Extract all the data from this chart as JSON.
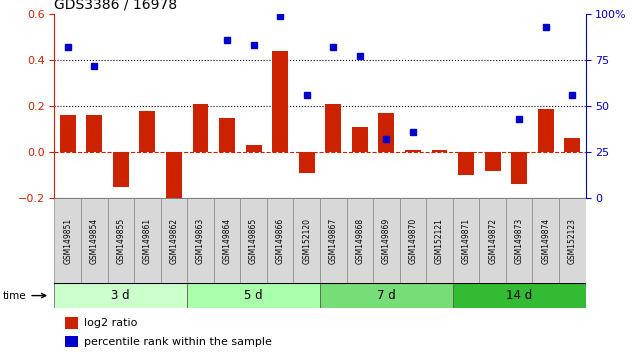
{
  "title": "GDS3386 / 16978",
  "samples": [
    "GSM149851",
    "GSM149854",
    "GSM149855",
    "GSM149861",
    "GSM149862",
    "GSM149863",
    "GSM149864",
    "GSM149865",
    "GSM149866",
    "GSM152120",
    "GSM149867",
    "GSM149868",
    "GSM149869",
    "GSM149870",
    "GSM152121",
    "GSM149871",
    "GSM149872",
    "GSM149873",
    "GSM149874",
    "GSM152123"
  ],
  "log2_ratio": [
    0.16,
    0.16,
    -0.15,
    0.18,
    -0.22,
    0.21,
    0.15,
    0.03,
    0.44,
    -0.09,
    0.21,
    0.11,
    0.17,
    0.01,
    0.01,
    -0.1,
    -0.08,
    -0.14,
    0.19,
    0.06
  ],
  "percentile_pct": [
    82,
    72,
    null,
    null,
    null,
    null,
    86,
    83,
    99,
    56,
    82,
    77,
    32,
    36,
    null,
    null,
    null,
    43,
    93,
    56
  ],
  "groups": [
    {
      "label": "3 d",
      "start": 0,
      "end": 5,
      "color": "#ccffcc"
    },
    {
      "label": "5 d",
      "start": 5,
      "end": 10,
      "color": "#aaffaa"
    },
    {
      "label": "7 d",
      "start": 10,
      "end": 15,
      "color": "#77dd77"
    },
    {
      "label": "14 d",
      "start": 15,
      "end": 20,
      "color": "#33bb33"
    }
  ],
  "bar_color": "#cc2200",
  "dot_color": "#0000cc",
  "ylim_left": [
    -0.2,
    0.6
  ],
  "ylim_right": [
    0,
    100
  ],
  "yticks_left": [
    -0.2,
    0.0,
    0.2,
    0.4,
    0.6
  ],
  "yticks_right": [
    0,
    25,
    50,
    75,
    100
  ],
  "hlines": [
    0.2,
    0.4
  ],
  "background_color": "#ffffff"
}
